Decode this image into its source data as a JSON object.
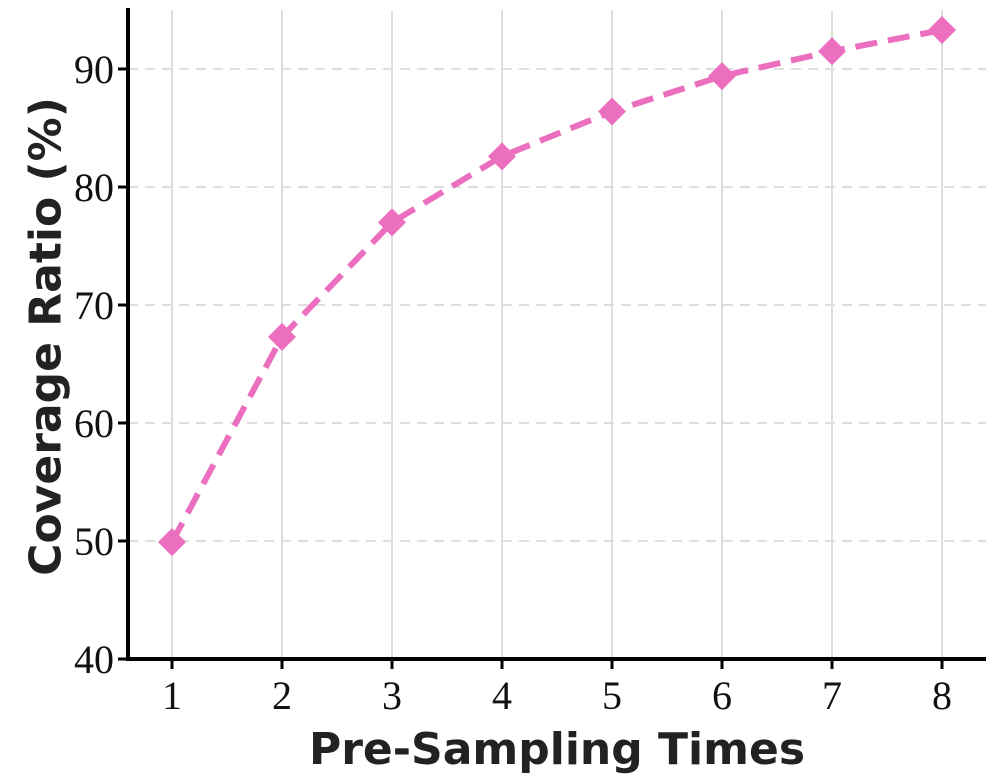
{
  "chart_data": {
    "type": "line",
    "title": "",
    "xlabel": "Pre-Sampling Times",
    "ylabel": "Coverage Ratio (%)",
    "x": [
      1,
      2,
      3,
      4,
      5,
      6,
      7,
      8
    ],
    "xticks": [
      "1",
      "2",
      "3",
      "4",
      "5",
      "6",
      "7",
      "8"
    ],
    "xlim": [
      0.6,
      8.4
    ],
    "yticks": [
      "40",
      "50",
      "60",
      "70",
      "80",
      "90"
    ],
    "ylim": [
      40,
      95
    ],
    "grid": true,
    "series": [
      {
        "values": [
          49.9,
          67.3,
          77.0,
          82.6,
          86.4,
          89.4,
          91.5,
          93.3
        ],
        "color": "#ec6fbf",
        "line_style": "dashed",
        "marker": "diamond"
      }
    ]
  }
}
